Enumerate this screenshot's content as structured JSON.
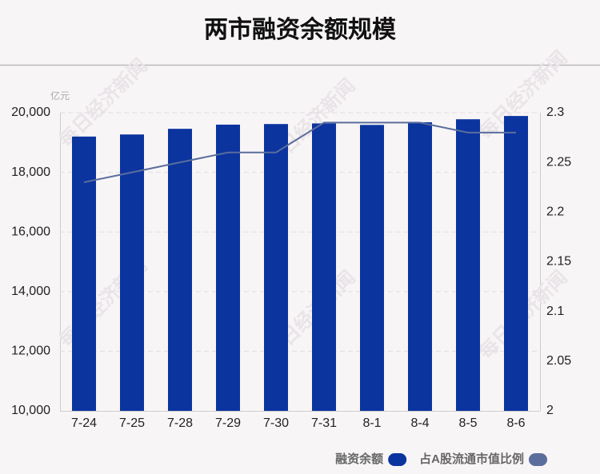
{
  "chart_data": {
    "type": "bar",
    "title": "两市融资余额规模",
    "y_unit": "亿元",
    "watermark": "每日经济新闻",
    "categories": [
      "7-24",
      "7-25",
      "7-28",
      "7-29",
      "7-30",
      "7-31",
      "8-1",
      "8-4",
      "8-5",
      "8-6"
    ],
    "series": [
      {
        "name": "融资余额",
        "type": "bar",
        "color": "#0b349f",
        "values": [
          19200,
          19270,
          19460,
          19600,
          19620,
          19640,
          19590,
          19680,
          19780,
          19890
        ]
      },
      {
        "name": "占A股流通市值比例",
        "type": "line",
        "axis": "y2",
        "color": "#5b6d9c",
        "values": [
          2.23,
          2.24,
          2.25,
          2.26,
          2.26,
          2.29,
          2.29,
          2.29,
          2.28,
          2.28
        ]
      }
    ],
    "ylim": [
      10000,
      20000
    ],
    "yticks": [
      {
        "value": 10000,
        "label": "10,000"
      },
      {
        "value": 12000,
        "label": "12,000"
      },
      {
        "value": 14000,
        "label": "14,000"
      },
      {
        "value": 16000,
        "label": "16,000"
      },
      {
        "value": 18000,
        "label": "18,000"
      },
      {
        "value": 20000,
        "label": "20,000"
      }
    ],
    "y2lim": [
      2,
      2.3
    ],
    "y2ticks": [
      2,
      2.05,
      2.1,
      2.15,
      2.2,
      2.25,
      2.3
    ],
    "grid": true
  }
}
